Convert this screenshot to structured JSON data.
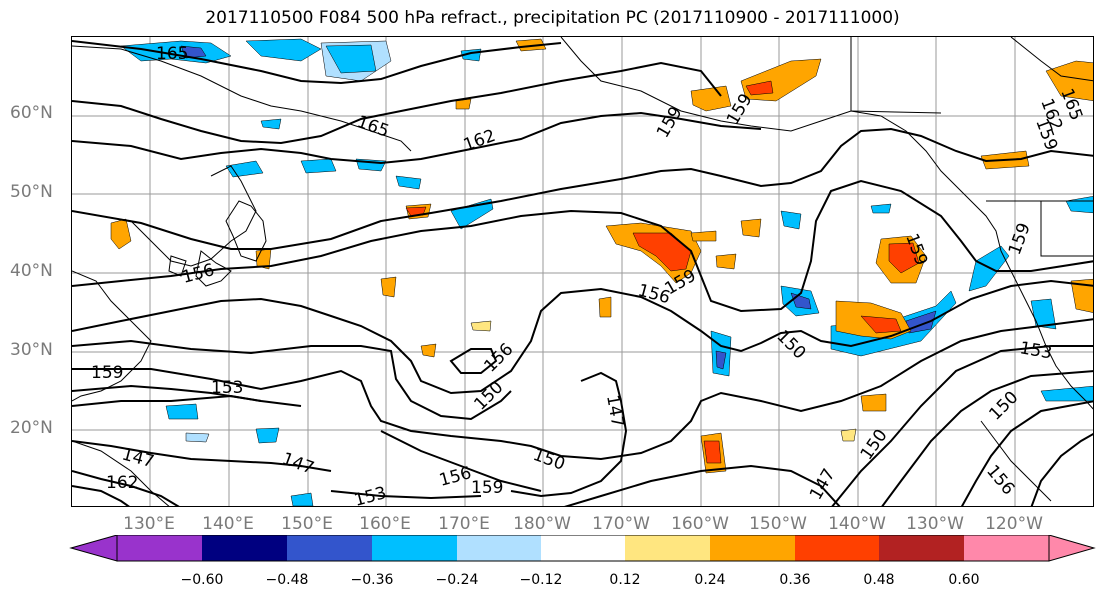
{
  "title": "2017110500 F084 500 hPa refract., precipitation PC (2017110900 - 2017111000)",
  "lat_labels": [
    "60°N",
    "50°N",
    "40°N",
    "30°N",
    "20°N"
  ],
  "lon_labels": [
    "130°E",
    "140°E",
    "150°E",
    "160°E",
    "170°E",
    "180°W",
    "170°W",
    "160°W",
    "150°W",
    "140°W",
    "130°W",
    "120°W"
  ],
  "contour_labels": [
    "165",
    "165",
    "162",
    "159",
    "159",
    "162",
    "165",
    "159",
    "159",
    "156",
    "156",
    "159",
    "150",
    "153",
    "159",
    "153",
    "156",
    "150",
    "147",
    "150",
    "147",
    "147",
    "162",
    "156",
    "159",
    "153",
    "150",
    "150",
    "147",
    "156",
    "159"
  ],
  "colorbar": {
    "ticks": [
      "−0.60",
      "−0.48",
      "−0.36",
      "−0.24",
      "−0.12",
      "0.12",
      "0.24",
      "0.36",
      "0.48",
      "0.60"
    ],
    "colors": [
      "#9933cc",
      "#000080",
      "#3355cc",
      "#00bfff",
      "#b0e0ff",
      "#ffffff",
      "#ffe680",
      "#ffa500",
      "#ff4000",
      "#b22222",
      "#ff88aa"
    ]
  },
  "shading_colors": {
    "neg_light": "#b0e0ff",
    "neg_mid": "#00bfff",
    "neg_strong": "#3355cc",
    "neg_max": "#9933cc",
    "pos_light": "#ffe680",
    "pos_mid": "#ffa500",
    "pos_strong": "#ff4000"
  }
}
